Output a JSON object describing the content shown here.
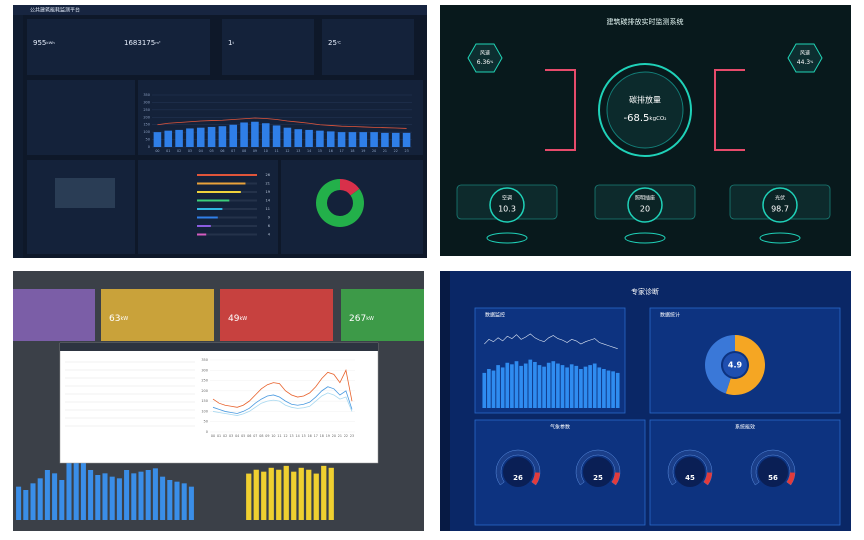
{
  "energy": {
    "title": "公共建筑能耗监测平台",
    "cards": [
      {
        "value": 955,
        "unit": "kWh"
      },
      {
        "value": 1683175,
        "unit": "m³"
      },
      {
        "value": 1,
        "unit": "t"
      },
      {
        "value": 25,
        "unit": "℃"
      }
    ],
    "chart_data": {
      "type": "bar",
      "categories": [
        "00",
        "01",
        "02",
        "03",
        "04",
        "05",
        "06",
        "07",
        "08",
        "09",
        "10",
        "11",
        "12",
        "13",
        "14",
        "15",
        "16",
        "17",
        "18",
        "19",
        "20",
        "21",
        "22",
        "23"
      ],
      "series": [
        {
          "type": "bar",
          "color": "#2f7fe8",
          "values": [
            100,
            110,
            115,
            125,
            130,
            135,
            140,
            150,
            165,
            170,
            160,
            145,
            130,
            120,
            115,
            110,
            105,
            100,
            100,
            100,
            100,
            95,
            95,
            95
          ]
        },
        {
          "type": "line",
          "color": "#e0553a",
          "values": [
            150,
            160,
            165,
            170,
            175,
            178,
            180,
            185,
            190,
            195,
            192,
            185,
            175,
            168,
            160,
            150,
            145,
            140,
            138,
            135,
            132,
            130,
            128,
            125
          ]
        }
      ],
      "ylim": [
        0,
        350
      ],
      "yticks": [
        0,
        50,
        100,
        150,
        200,
        250,
        300,
        350
      ]
    },
    "progress": {
      "values": [
        26,
        21,
        19,
        14,
        11,
        9,
        6,
        4
      ],
      "colors": [
        "#e0553a",
        "#e9a23b",
        "#f0d23c",
        "#3ccf7a",
        "#2fb7e0",
        "#2f7fe8",
        "#8a5ce0",
        "#d45cc0"
      ]
    },
    "donut": {
      "type": "pie",
      "values": [
        15,
        85
      ],
      "colors": [
        "#d8304a",
        "#23b04a"
      ]
    }
  },
  "carbon": {
    "title": "建筑碳排放实时监测系统",
    "left": {
      "label": "风速",
      "value": 6.36,
      "unit": "%"
    },
    "right": {
      "label": "风速",
      "value": 44.3,
      "unit": "%"
    },
    "center": {
      "label": "碳排放量",
      "value": -68.5,
      "unit": "kgCO₂"
    },
    "nodes": [
      {
        "label": "空调",
        "value": 10.3
      },
      {
        "label": "照明插座",
        "value": 20
      },
      {
        "label": "光伏",
        "value": 98.7
      }
    ]
  },
  "power": {
    "cards": [
      {
        "value": 63,
        "unit": "kW",
        "color": "#c9a23a"
      },
      {
        "value": 49,
        "unit": "kW",
        "color": "#c7413f"
      },
      {
        "value": 267,
        "unit": "kW",
        "color": "#3d9a48"
      }
    ],
    "line_chart": {
      "type": "line",
      "categories": [
        "00",
        "01",
        "02",
        "03",
        "04",
        "05",
        "06",
        "07",
        "08",
        "09",
        "10",
        "11",
        "12",
        "13",
        "14",
        "15",
        "16",
        "17",
        "18",
        "19",
        "20",
        "21",
        "22",
        "23"
      ],
      "ylim": [
        0,
        350
      ],
      "yticks": [
        0,
        50,
        100,
        150,
        200,
        250,
        300,
        350
      ],
      "series": [
        {
          "color": "#e8622c",
          "values": [
            160,
            140,
            130,
            125,
            120,
            130,
            150,
            180,
            210,
            230,
            240,
            235,
            200,
            180,
            170,
            175,
            190,
            220,
            260,
            290,
            280,
            240,
            300,
            150
          ]
        },
        {
          "color": "#4a9ae0",
          "values": [
            120,
            110,
            100,
            95,
            90,
            100,
            115,
            140,
            160,
            175,
            180,
            170,
            150,
            135,
            130,
            135,
            145,
            170,
            200,
            220,
            210,
            180,
            200,
            110
          ]
        },
        {
          "color": "#a7d8f0",
          "values": [
            100,
            95,
            90,
            85,
            80,
            88,
            100,
            120,
            140,
            150,
            155,
            150,
            130,
            120,
            115,
            118,
            125,
            150,
            175,
            190,
            180,
            160,
            170,
            100
          ]
        }
      ]
    },
    "blue_bars": {
      "type": "bar",
      "color": "#3a8ee8",
      "ylim": [
        0,
        60
      ],
      "values": [
        20,
        18,
        22,
        25,
        30,
        28,
        24,
        55,
        35,
        38,
        30,
        27,
        28,
        26,
        25,
        30,
        28,
        29,
        30,
        31,
        26,
        24,
        23,
        22,
        20
      ]
    },
    "yellow_bars": {
      "type": "bar",
      "color": "#f0d030",
      "ylim": [
        0,
        30
      ],
      "values": [
        24,
        26,
        25,
        27,
        26,
        28,
        25,
        27,
        26,
        24,
        28,
        27
      ]
    }
  },
  "diagnosis": {
    "title": "专家诊断",
    "sections": [
      "数据监控",
      "数据统计",
      "气象参数",
      "系统能效"
    ],
    "monitor": {
      "type": "bar",
      "ylim": [
        0,
        100
      ],
      "bars": {
        "color": "#2f8cf0",
        "values": [
          45,
          50,
          48,
          55,
          52,
          58,
          56,
          60,
          54,
          57,
          62,
          59,
          55,
          53,
          58,
          60,
          57,
          55,
          52,
          56,
          54,
          50,
          53,
          55,
          57,
          52,
          50,
          48,
          47,
          45
        ]
      },
      "line": {
        "color": "#dfe8f5",
        "values": [
          82,
          88,
          85,
          90,
          86,
          92,
          89,
          94,
          88,
          91,
          95,
          90,
          87,
          85,
          90,
          93,
          89,
          87,
          84,
          88,
          86,
          82,
          85,
          87,
          89,
          84,
          82,
          80,
          78,
          76
        ]
      }
    },
    "donut": {
      "type": "pie",
      "values": [
        55,
        45
      ],
      "colors": [
        "#f5a623",
        "#3a78d8"
      ],
      "center": 4.9
    },
    "gauges": [
      26,
      25,
      45,
      56
    ]
  }
}
